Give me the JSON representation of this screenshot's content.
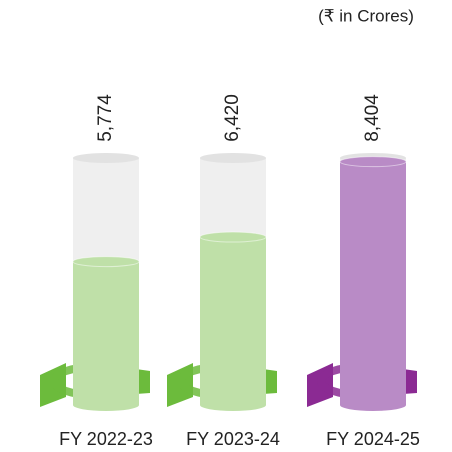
{
  "chart_data": {
    "type": "bar",
    "subtitle": "(₹ in Crores)",
    "categories": [
      "FY 2022-23",
      "FY 2023-24",
      "FY 2024-25"
    ],
    "values": [
      5774,
      6420,
      8404
    ],
    "value_labels": [
      "5,774",
      "6,420",
      "8,404"
    ],
    "colors": [
      "#bfe0a8",
      "#bfe0a8",
      "#b98bc6"
    ],
    "base_colors": [
      "#6cbb3c",
      "#6cbb3c",
      "#8b2a93"
    ],
    "ylim": [
      2000,
      8500
    ]
  }
}
